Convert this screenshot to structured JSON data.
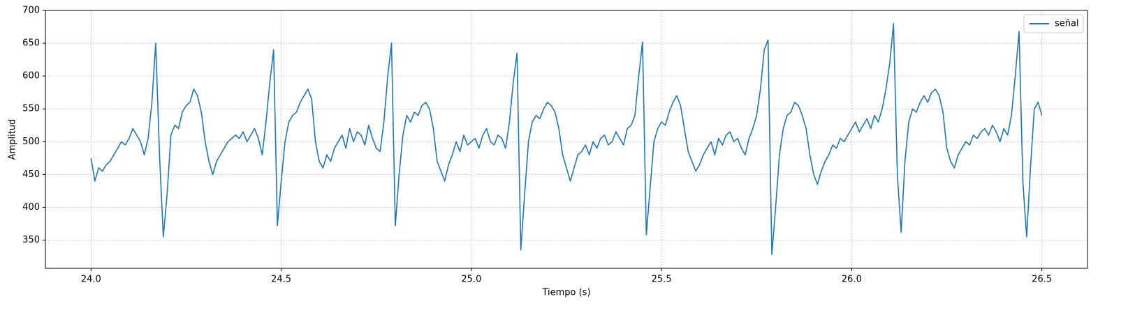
{
  "chart_data": {
    "type": "line",
    "xlabel": "Tiempo (s)",
    "ylabel": "Amplitud",
    "x": [
      24,
      24.01,
      24.02,
      24.03,
      24.04,
      24.05,
      24.06,
      24.07,
      24.08,
      24.09,
      24.1,
      24.11,
      24.12,
      24.13,
      24.14,
      24.15,
      24.16,
      24.17,
      24.18,
      24.19,
      24.2,
      24.21,
      24.22,
      24.23,
      24.24,
      24.25,
      24.26,
      24.27,
      24.28,
      24.29,
      24.3,
      24.31,
      24.32,
      24.33,
      24.34,
      24.35,
      24.36,
      24.37,
      24.38,
      24.39,
      24.4,
      24.41,
      24.42,
      24.43,
      24.44,
      24.45,
      24.46,
      24.47,
      24.48,
      24.49,
      24.5,
      24.51,
      24.52,
      24.53,
      24.54,
      24.55,
      24.56,
      24.57,
      24.58,
      24.59,
      24.6,
      24.61,
      24.62,
      24.63,
      24.64,
      24.65,
      24.66,
      24.67,
      24.68,
      24.69,
      24.7,
      24.71,
      24.72,
      24.73,
      24.74,
      24.75,
      24.76,
      24.77,
      24.78,
      24.79,
      24.8,
      24.81,
      24.82,
      24.83,
      24.84,
      24.85,
      24.86,
      24.87,
      24.88,
      24.89,
      24.9,
      24.91,
      24.92,
      24.93,
      24.94,
      24.95,
      24.96,
      24.97,
      24.98,
      24.99,
      25,
      25.01,
      25.02,
      25.03,
      25.04,
      25.05,
      25.06,
      25.07,
      25.08,
      25.09,
      25.1,
      25.11,
      25.12,
      25.13,
      25.14,
      25.15,
      25.16,
      25.17,
      25.18,
      25.19,
      25.2,
      25.21,
      25.22,
      25.23,
      25.24,
      25.25,
      25.26,
      25.27,
      25.28,
      25.29,
      25.3,
      25.31,
      25.32,
      25.33,
      25.34,
      25.35,
      25.36,
      25.37,
      25.38,
      25.39,
      25.4,
      25.41,
      25.42,
      25.43,
      25.44,
      25.45,
      25.46,
      25.47,
      25.48,
      25.49,
      25.5,
      25.51,
      25.52,
      25.53,
      25.54,
      25.55,
      25.56,
      25.57,
      25.58,
      25.59,
      25.6,
      25.61,
      25.62,
      25.63,
      25.64,
      25.65,
      25.66,
      25.67,
      25.68,
      25.69,
      25.7,
      25.71,
      25.72,
      25.73,
      25.74,
      25.75,
      25.76,
      25.77,
      25.78,
      25.79,
      25.8,
      25.81,
      25.82,
      25.83,
      25.84,
      25.85,
      25.86,
      25.87,
      25.88,
      25.89,
      25.9,
      25.91,
      25.92,
      25.93,
      25.94,
      25.95,
      25.96,
      25.97,
      25.98,
      25.99,
      26,
      26.01,
      26.02,
      26.03,
      26.04,
      26.05,
      26.06,
      26.07,
      26.08,
      26.09,
      26.1,
      26.11,
      26.12,
      26.13,
      26.14,
      26.15,
      26.16,
      26.17,
      26.18,
      26.19,
      26.2,
      26.21,
      26.22,
      26.23,
      26.24,
      26.25,
      26.26,
      26.27,
      26.28,
      26.29,
      26.3,
      26.31,
      26.32,
      26.33,
      26.34,
      26.35,
      26.36,
      26.37,
      26.38,
      26.39,
      26.4,
      26.41,
      26.42,
      26.43,
      26.44,
      26.45,
      26.46,
      26.47,
      26.48,
      26.49,
      26.5
    ],
    "series": [
      {
        "name": "señal",
        "color": "#1f77b4",
        "values": [
          475,
          440,
          460,
          455,
          465,
          470,
          480,
          490,
          500,
          495,
          505,
          520,
          510,
          500,
          480,
          505,
          560,
          650,
          480,
          355,
          420,
          510,
          525,
          520,
          545,
          555,
          560,
          580,
          570,
          545,
          500,
          470,
          450,
          470,
          480,
          490,
          500,
          505,
          510,
          505,
          515,
          500,
          510,
          520,
          505,
          480,
          530,
          590,
          640,
          372,
          440,
          500,
          530,
          540,
          545,
          560,
          570,
          580,
          565,
          500,
          470,
          460,
          480,
          470,
          490,
          500,
          510,
          490,
          520,
          500,
          515,
          510,
          495,
          525,
          505,
          490,
          485,
          530,
          600,
          650,
          372,
          450,
          510,
          540,
          530,
          545,
          540,
          555,
          560,
          550,
          520,
          470,
          455,
          440,
          465,
          480,
          500,
          485,
          510,
          495,
          500,
          505,
          490,
          510,
          520,
          500,
          495,
          510,
          505,
          490,
          530,
          590,
          635,
          335,
          420,
          500,
          530,
          540,
          535,
          550,
          560,
          555,
          545,
          520,
          480,
          460,
          440,
          460,
          480,
          485,
          495,
          480,
          500,
          490,
          505,
          510,
          495,
          500,
          515,
          505,
          495,
          520,
          525,
          540,
          600,
          652,
          358,
          430,
          500,
          520,
          530,
          525,
          545,
          560,
          570,
          555,
          520,
          485,
          470,
          455,
          465,
          480,
          490,
          500,
          480,
          505,
          495,
          510,
          515,
          500,
          505,
          490,
          480,
          505,
          520,
          540,
          580,
          640,
          655,
          328,
          400,
          480,
          520,
          540,
          545,
          560,
          555,
          540,
          520,
          480,
          450,
          435,
          455,
          470,
          480,
          495,
          490,
          505,
          500,
          510,
          520,
          530,
          515,
          525,
          535,
          520,
          540,
          530,
          550,
          580,
          620,
          680,
          450,
          362,
          470,
          530,
          550,
          545,
          560,
          570,
          560,
          575,
          580,
          570,
          545,
          490,
          470,
          460,
          480,
          490,
          500,
          495,
          510,
          505,
          515,
          520,
          510,
          525,
          515,
          500,
          520,
          510,
          540,
          600,
          668,
          440,
          355,
          460,
          550,
          560,
          540
        ]
      }
    ],
    "xlim": [
      23.88,
      26.62
    ],
    "ylim": [
      307,
      700
    ],
    "xticks": [
      {
        "value": 24,
        "label": "24.0"
      },
      24.5,
      {
        "value": 25,
        "label": "25.0"
      },
      25.5,
      {
        "value": 26,
        "label": "26.0"
      },
      26.5
    ],
    "yticks": [
      350,
      400,
      450,
      500,
      550,
      600,
      650,
      700
    ],
    "grid": true,
    "legend": "upper right"
  }
}
